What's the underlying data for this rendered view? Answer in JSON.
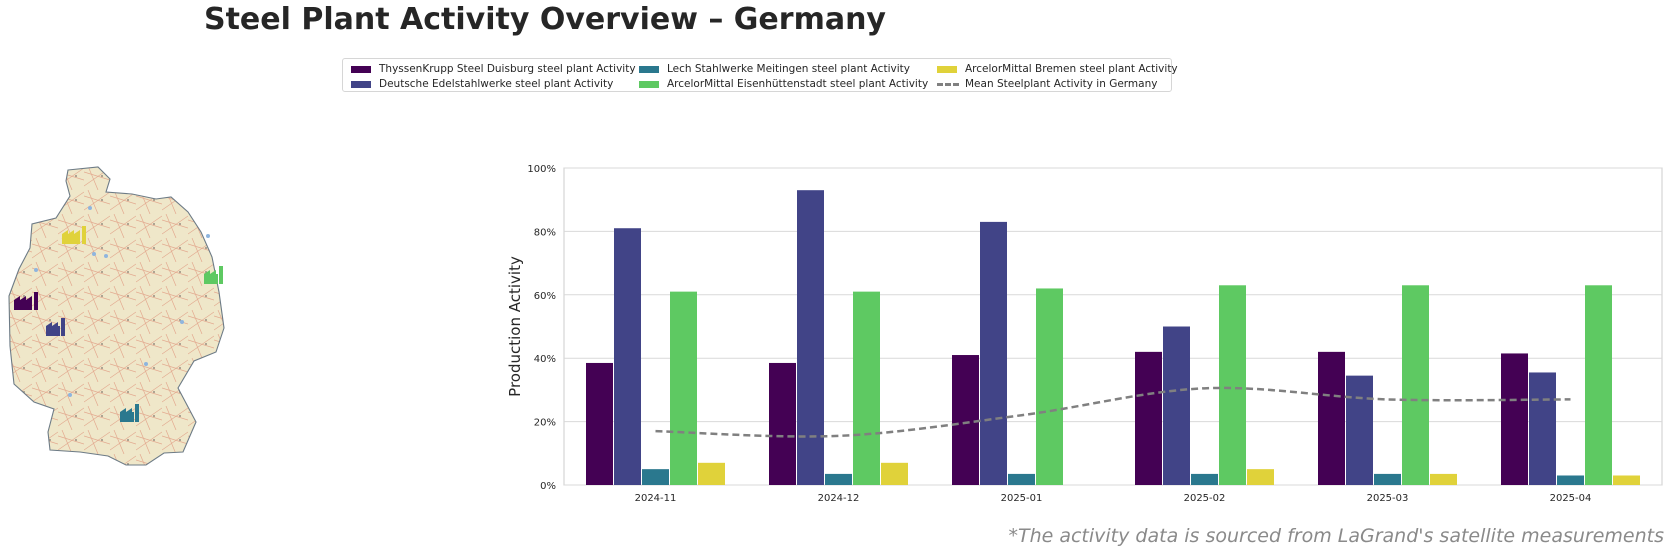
{
  "title": "Steel Plant Activity Overview – Germany",
  "footnote": "*The activity data is sourced from LaGrand's satellite measurements",
  "colors": {
    "thyssenkrupp": "#440154",
    "edelstahl": "#414487",
    "lech": "#2a788e",
    "eisenhuettenstadt": "#5ec962",
    "bremen": "#e0d23a",
    "mean": "#808080"
  },
  "legend": [
    {
      "label": "ThyssenKrupp Steel Duisburg steel plant Activity",
      "color": "#440154",
      "style": "bar"
    },
    {
      "label": "Deutsche Edelstahlwerke steel plant Activity",
      "color": "#414487",
      "style": "bar"
    },
    {
      "label": "Lech Stahlwerke Meitingen steel plant Activity",
      "color": "#2a788e",
      "style": "bar"
    },
    {
      "label": "ArcelorMittal Eisenhüttenstadt steel plant Activity",
      "color": "#5ec962",
      "style": "bar"
    },
    {
      "label": "ArcelorMittal Bremen steel plant Activity",
      "color": "#e0d23a",
      "style": "bar"
    },
    {
      "label": "Mean Steelplant Activity in Germany",
      "color": "#808080",
      "style": "dashed-line"
    }
  ],
  "map": {
    "plant_icons": [
      {
        "name": "thyssenkrupp-icon",
        "color": "#440154"
      },
      {
        "name": "edelstahl-icon",
        "color": "#414487"
      },
      {
        "name": "lech-icon",
        "color": "#2a788e"
      },
      {
        "name": "eisenhuettenstadt-icon",
        "color": "#5ec962"
      },
      {
        "name": "bremen-icon",
        "color": "#e0d23a"
      }
    ]
  },
  "chart_data": {
    "type": "bar",
    "ylabel": "Production Activity",
    "xlabel": "",
    "ylim": [
      0,
      100
    ],
    "yticks": [
      "0%",
      "20%",
      "40%",
      "60%",
      "80%",
      "100%"
    ],
    "grid": "horizontal",
    "categories": [
      "2024-11",
      "2024-12",
      "2025-01",
      "2025-02",
      "2025-03",
      "2025-04"
    ],
    "series": [
      {
        "name": "ThyssenKrupp Steel Duisburg steel plant Activity",
        "values": [
          38.5,
          38.5,
          41,
          42,
          42,
          41.5
        ]
      },
      {
        "name": "Deutsche Edelstahlwerke steel plant Activity",
        "values": [
          81,
          93,
          83,
          50,
          34.5,
          35.5
        ]
      },
      {
        "name": "Lech Stahlwerke Meitingen steel plant Activity",
        "values": [
          5,
          3.5,
          3.5,
          3.5,
          3.5,
          3
        ]
      },
      {
        "name": "ArcelorMittal Eisenhüttenstadt steel plant Activity",
        "values": [
          61,
          61,
          62,
          63,
          63,
          63
        ]
      },
      {
        "name": "ArcelorMittal Bremen steel plant Activity",
        "values": [
          7,
          7,
          0,
          5,
          3.5,
          3
        ]
      }
    ],
    "mean_line": {
      "name": "Mean Steelplant Activity in Germany",
      "values": [
        17,
        15.5,
        22,
        30.5,
        27,
        27
      ]
    }
  }
}
